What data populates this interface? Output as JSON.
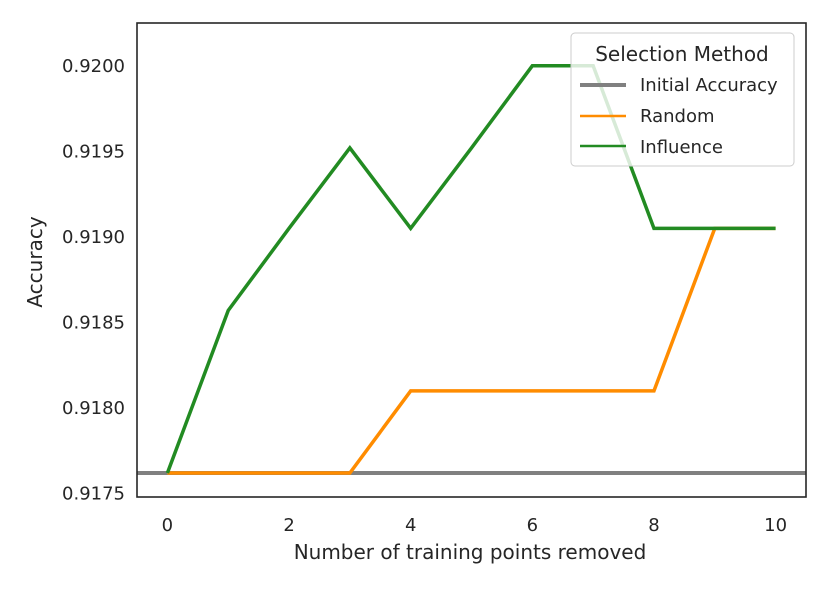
{
  "chart_data": {
    "type": "line",
    "xlabel": "Number of training points removed",
    "ylabel": "Accuracy",
    "xlim": [
      -0.5,
      10.5
    ],
    "ylim": [
      0.91748,
      0.92025
    ],
    "x_ticks": [
      "0",
      "2",
      "4",
      "6",
      "8",
      "10"
    ],
    "y_ticks": [
      "0.9175",
      "0.9180",
      "0.9185",
      "0.9190",
      "0.9195",
      "0.9200"
    ],
    "x_tick_values": [
      0,
      2,
      4,
      6,
      8,
      10
    ],
    "y_tick_values": [
      0.9175,
      0.918,
      0.9185,
      0.919,
      0.9195,
      0.92
    ],
    "grid": false,
    "legend": {
      "title": "Selection Method",
      "placement": "top-right",
      "entries": [
        "Initial Accuracy",
        "Random",
        "Influence"
      ]
    },
    "x": [
      0,
      1,
      2,
      3,
      4,
      5,
      6,
      7,
      8,
      9,
      10
    ],
    "baseline": {
      "name": "Initial Accuracy",
      "value": 0.91762,
      "color": "#808080"
    },
    "series": [
      {
        "name": "Random",
        "color": "#ff8c00",
        "values": [
          0.91762,
          0.91762,
          0.91762,
          0.91762,
          0.9181,
          0.9181,
          0.9181,
          0.9181,
          0.9181,
          0.91905,
          0.91905
        ]
      },
      {
        "name": "Influence",
        "color": "#228b22",
        "values": [
          0.91762,
          0.91857,
          0.91905,
          0.91952,
          0.91905,
          0.91952,
          0.92,
          0.92,
          0.91905,
          0.91905,
          0.91905
        ]
      }
    ]
  }
}
